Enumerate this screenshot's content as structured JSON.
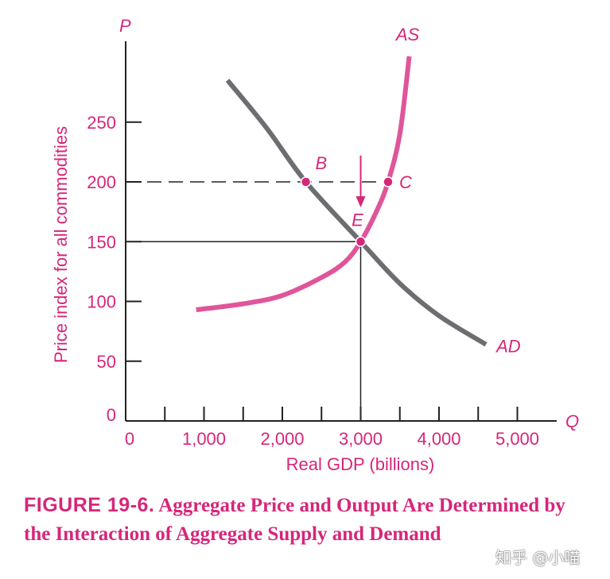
{
  "chart_data": {
    "type": "line",
    "x_axis": {
      "symbol": "Q",
      "label": "Real GDP (billions)",
      "range": [
        0,
        5500
      ],
      "ticks": [
        0,
        500,
        1000,
        1500,
        2000,
        2500,
        3000,
        3500,
        4000,
        4500,
        5000
      ],
      "tick_labels": [
        {
          "value": 0,
          "label": "0"
        },
        {
          "value": 1000,
          "label": "1,000"
        },
        {
          "value": 2000,
          "label": "2,000"
        },
        {
          "value": 3000,
          "label": "3,000"
        },
        {
          "value": 4000,
          "label": "4,000"
        },
        {
          "value": 5000,
          "label": "5,000"
        }
      ]
    },
    "y_axis": {
      "symbol": "P",
      "label": "Price index for all commodities",
      "range": [
        0,
        315
      ],
      "ticks": [
        50,
        100,
        150,
        200,
        250
      ],
      "tick_labels": [
        {
          "value": 0,
          "label": "0"
        },
        {
          "value": 50,
          "label": "50"
        },
        {
          "value": 100,
          "label": "100"
        },
        {
          "value": 150,
          "label": "150"
        },
        {
          "value": 200,
          "label": "200"
        },
        {
          "value": 250,
          "label": "250"
        }
      ]
    },
    "series": [
      {
        "name": "AD",
        "color": "#6d6e71",
        "points": [
          [
            1300,
            285
          ],
          [
            1800,
            245
          ],
          [
            2300,
            200
          ],
          [
            3000,
            150
          ],
          [
            3500,
            115
          ],
          [
            4000,
            88
          ],
          [
            4600,
            64
          ]
        ]
      },
      {
        "name": "AS",
        "color": "#e0559a",
        "points": [
          [
            900,
            93
          ],
          [
            1500,
            98
          ],
          [
            2000,
            105
          ],
          [
            2500,
            120
          ],
          [
            2800,
            133
          ],
          [
            3000,
            150
          ],
          [
            3200,
            175
          ],
          [
            3350,
            200
          ],
          [
            3500,
            240
          ],
          [
            3620,
            305
          ]
        ]
      }
    ],
    "points": [
      {
        "label": "B",
        "x": 2300,
        "y": 200
      },
      {
        "label": "C",
        "x": 3350,
        "y": 200
      },
      {
        "label": "E",
        "x": 3000,
        "y": 150
      }
    ],
    "reference_lines": [
      {
        "type": "dashed",
        "y": 200,
        "x_from": 0,
        "x_to": 3350
      },
      {
        "type": "solid",
        "y": 150,
        "x_from": 0,
        "x_to": 3000
      },
      {
        "type": "solid",
        "x": 3000,
        "y_from": 0,
        "y_to": 150
      }
    ],
    "arrow": {
      "x": 3000,
      "y_from": 222,
      "y_to": 180
    }
  },
  "caption": {
    "figure_number": "FIGURE 19-6.",
    "title": "Aggregate Price and Output Are Determined by the Interaction of Aggregate Supply and Demand"
  },
  "watermark": "知乎 @小喵",
  "colors": {
    "magenta": "#d6267a",
    "as_curve": "#e0559a",
    "ad_curve": "#6d6e71",
    "axis": "#222222"
  }
}
